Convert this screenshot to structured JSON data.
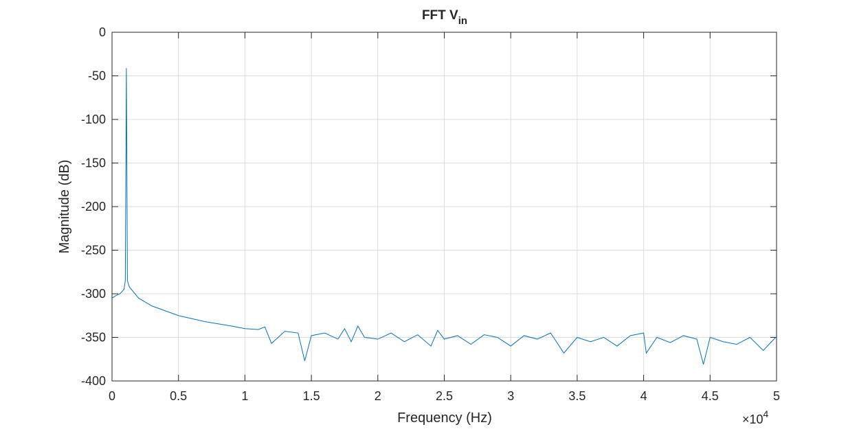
{
  "chart_data": {
    "type": "line",
    "title": "FFT V",
    "title_subscript": "in",
    "xlabel": "Frequency (Hz)",
    "ylabel": "Magnitude (dB)",
    "x_multiplier_base": "×10",
    "x_multiplier_exponent": "4",
    "x": [
      0,
      0.03,
      0.06,
      0.09,
      0.1,
      0.108,
      0.116,
      0.13,
      0.2,
      0.3,
      0.5,
      0.7,
      0.9,
      1.0,
      1.1,
      1.15,
      1.2,
      1.3,
      1.4,
      1.45,
      1.5,
      1.6,
      1.7,
      1.75,
      1.8,
      1.85,
      1.9,
      2.0,
      2.1,
      2.2,
      2.3,
      2.4,
      2.45,
      2.5,
      2.6,
      2.7,
      2.8,
      2.9,
      3.0,
      3.1,
      3.2,
      3.3,
      3.4,
      3.5,
      3.6,
      3.7,
      3.8,
      3.9,
      4.0,
      4.02,
      4.1,
      4.2,
      4.3,
      4.4,
      4.45,
      4.5,
      4.6,
      4.7,
      4.8,
      4.9,
      5.0
    ],
    "series": [
      {
        "name": "Vin",
        "color": "#0072bd",
        "values": [
          -305,
          -302,
          -300,
          -295,
          -285,
          -41,
          -285,
          -292,
          -305,
          -314,
          -325,
          -332,
          -337,
          -340,
          -341,
          -338,
          -357,
          -343,
          -345,
          -377,
          -348,
          -345,
          -352,
          -340,
          -355,
          -337,
          -350,
          -352,
          -345,
          -355,
          -347,
          -360,
          -342,
          -352,
          -348,
          -358,
          -347,
          -350,
          -360,
          -348,
          -352,
          -345,
          -368,
          -350,
          -355,
          -350,
          -360,
          -348,
          -345,
          -368,
          -350,
          -356,
          -348,
          -352,
          -381,
          -350,
          -355,
          -358,
          -350,
          -365,
          -349
        ]
      }
    ],
    "xlim": [
      0,
      5
    ],
    "xticks": [
      0,
      0.5,
      1,
      1.5,
      2,
      2.5,
      3,
      3.5,
      4,
      4.5,
      5
    ],
    "ylim": [
      -400,
      0
    ],
    "yticks": [
      0,
      -50,
      -100,
      -150,
      -200,
      -250,
      -300,
      -350,
      -400
    ],
    "grid": true
  }
}
